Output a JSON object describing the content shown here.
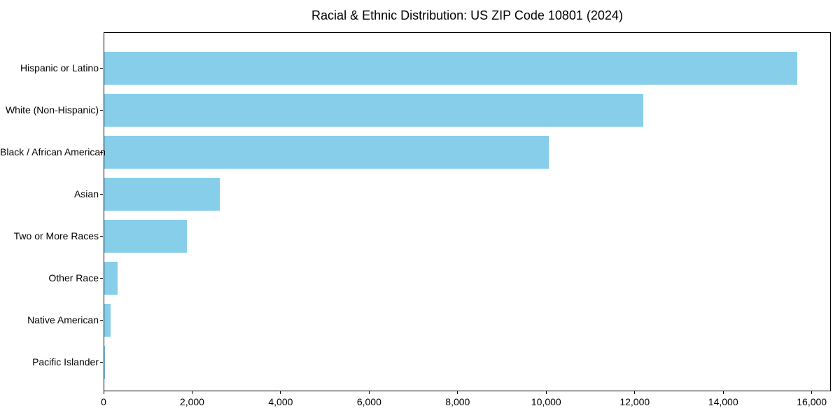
{
  "title": "Racial & Ethnic Distribution: US ZIP Code 10801 (2024)",
  "colors": {
    "bar": "#87CEEB",
    "background": "#ffffff",
    "text": "#000000",
    "spine": "#000000"
  },
  "chart_data": {
    "type": "bar",
    "orientation": "horizontal",
    "title": "Racial & Ethnic Distribution: US ZIP Code 10801 (2024)",
    "xlabel": "",
    "ylabel": "",
    "categories": [
      "Hispanic or Latino",
      "White (Non-Hispanic)",
      "Black / African American",
      "Asian",
      "Two or More Races",
      "Other Race",
      "Native American",
      "Pacific Islander"
    ],
    "values": [
      15650,
      12180,
      10040,
      2615,
      1865,
      300,
      145,
      12
    ],
    "bar_color": "#87CEEB",
    "xlim": [
      0,
      16432
    ],
    "xticks": [
      0,
      2000,
      4000,
      6000,
      8000,
      10000,
      12000,
      14000,
      16000
    ],
    "xtick_labels": [
      "0",
      "2,000",
      "4,000",
      "6,000",
      "8,000",
      "10,000",
      "12,000",
      "14,000",
      "16,000"
    ],
    "grid": false,
    "legend": null
  }
}
